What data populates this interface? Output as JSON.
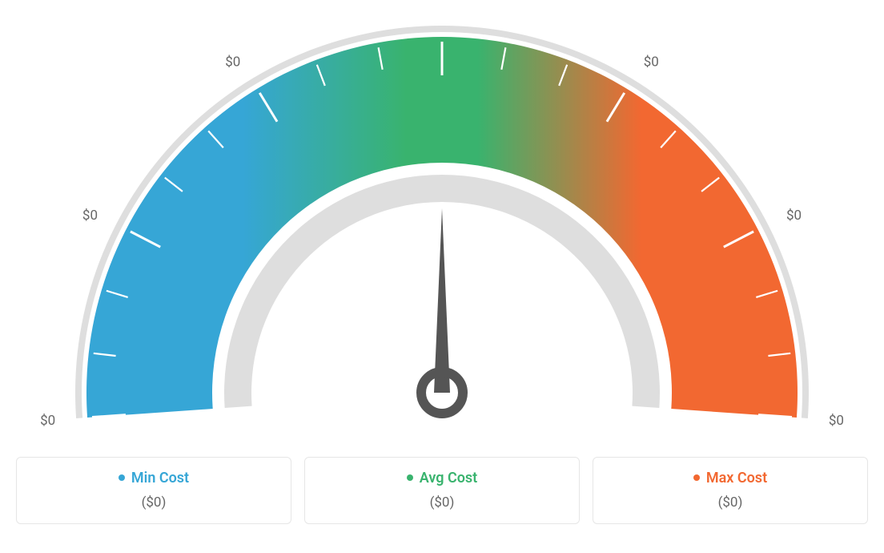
{
  "gauge": {
    "type": "gauge",
    "background_color": "#ffffff",
    "outer_ring_color": "#dedede",
    "inner_ring_color": "#dedede",
    "needle_color": "#555555",
    "needle_angle_deg": 90,
    "colors": {
      "min": "#36a6d6",
      "avg": "#39b36e",
      "max": "#f26831"
    },
    "tick_labels": [
      "$0",
      "$0",
      "$0",
      "$0",
      "$0",
      "$0",
      "$0"
    ],
    "tick_label_color": "#666666",
    "tick_label_fontsize": 17,
    "minor_tick_color": "#ffffff",
    "major_ticks": 7,
    "minor_per_major": 3,
    "legend": [
      {
        "label": "Min Cost",
        "value": "($0)",
        "color_key": "min"
      },
      {
        "label": "Avg Cost",
        "value": "($0)",
        "color_key": "avg"
      },
      {
        "label": "Max Cost",
        "value": "($0)",
        "color_key": "max"
      }
    ],
    "legend_label_fontsize": 18,
    "legend_value_fontsize": 17,
    "legend_value_color": "#666666",
    "legend_border_color": "#e6e6e6"
  }
}
